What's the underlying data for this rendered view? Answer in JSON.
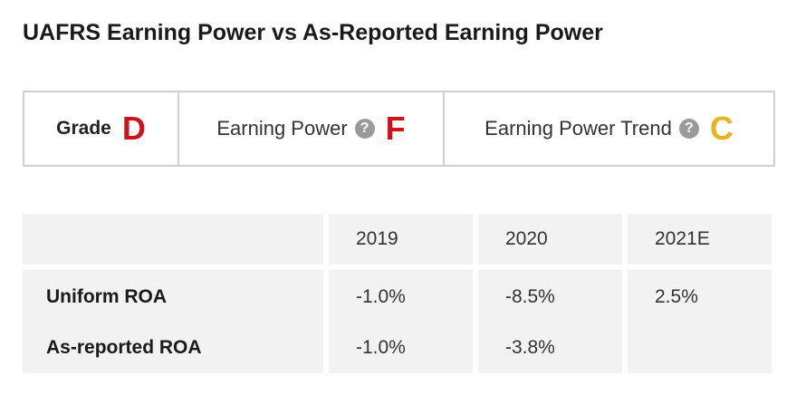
{
  "title": "UAFRS Earning Power vs As-Reported Earning Power",
  "grades": {
    "overall": {
      "label": "Grade",
      "value": "D",
      "color": "#d0121b"
    },
    "earning_power": {
      "label": "Earning Power",
      "help": "?",
      "value": "F",
      "color": "#d0121b"
    },
    "earning_power_trend": {
      "label": "Earning Power Trend",
      "help": "?",
      "value": "C",
      "color": "#e6b422"
    }
  },
  "table": {
    "years": [
      "2019",
      "2020",
      "2021E"
    ],
    "rows": [
      {
        "label": "Uniform ROA",
        "values": [
          "-1.0%",
          "-8.5%",
          "2.5%"
        ]
      },
      {
        "label": "As-reported ROA",
        "values": [
          "-1.0%",
          "-3.8%",
          ""
        ]
      }
    ]
  }
}
